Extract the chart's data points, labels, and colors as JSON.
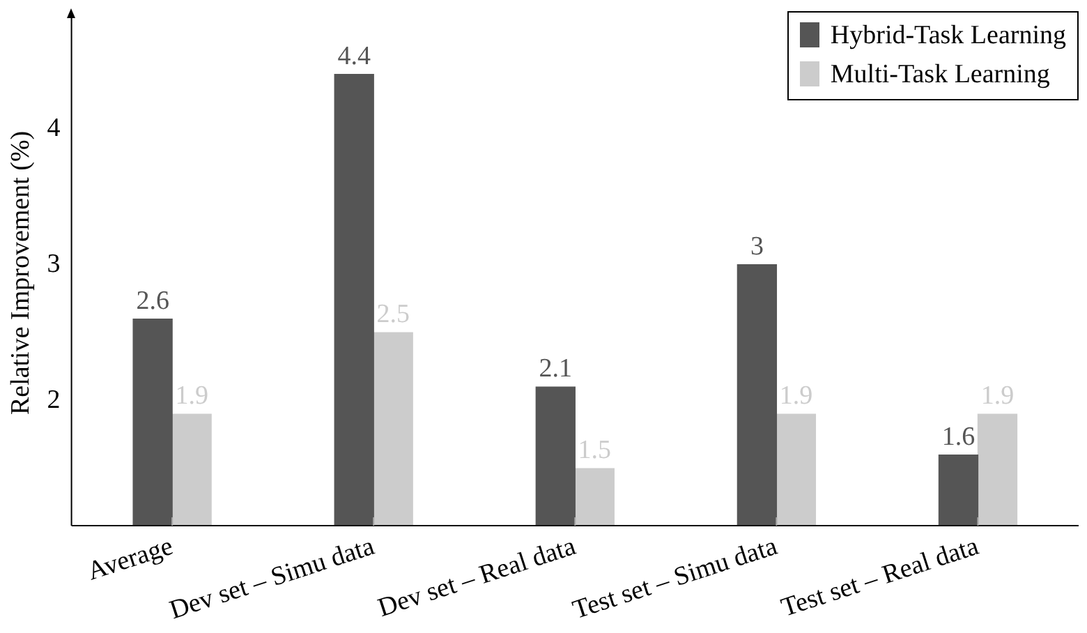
{
  "chart_data": {
    "type": "bar",
    "ylabel": "Relative Improvement (%)",
    "categories": [
      "Average",
      "Dev set – Simu data",
      "Dev set – Real data",
      "Test set – Simu data",
      "Test set – Real data"
    ],
    "series": [
      {
        "name": "Hybrid-Task Learning",
        "color": "#555555",
        "values": [
          2.6,
          4.4,
          2.1,
          3,
          1.6
        ]
      },
      {
        "name": "Multi-Task Learning",
        "color": "#cccccc",
        "values": [
          1.9,
          2.5,
          1.5,
          1.9,
          1.9
        ]
      }
    ],
    "ylim": [
      1.08,
      4.8
    ],
    "yticks": [
      2,
      3,
      4
    ],
    "data_labels": true,
    "legend": "top right",
    "grid": false
  }
}
